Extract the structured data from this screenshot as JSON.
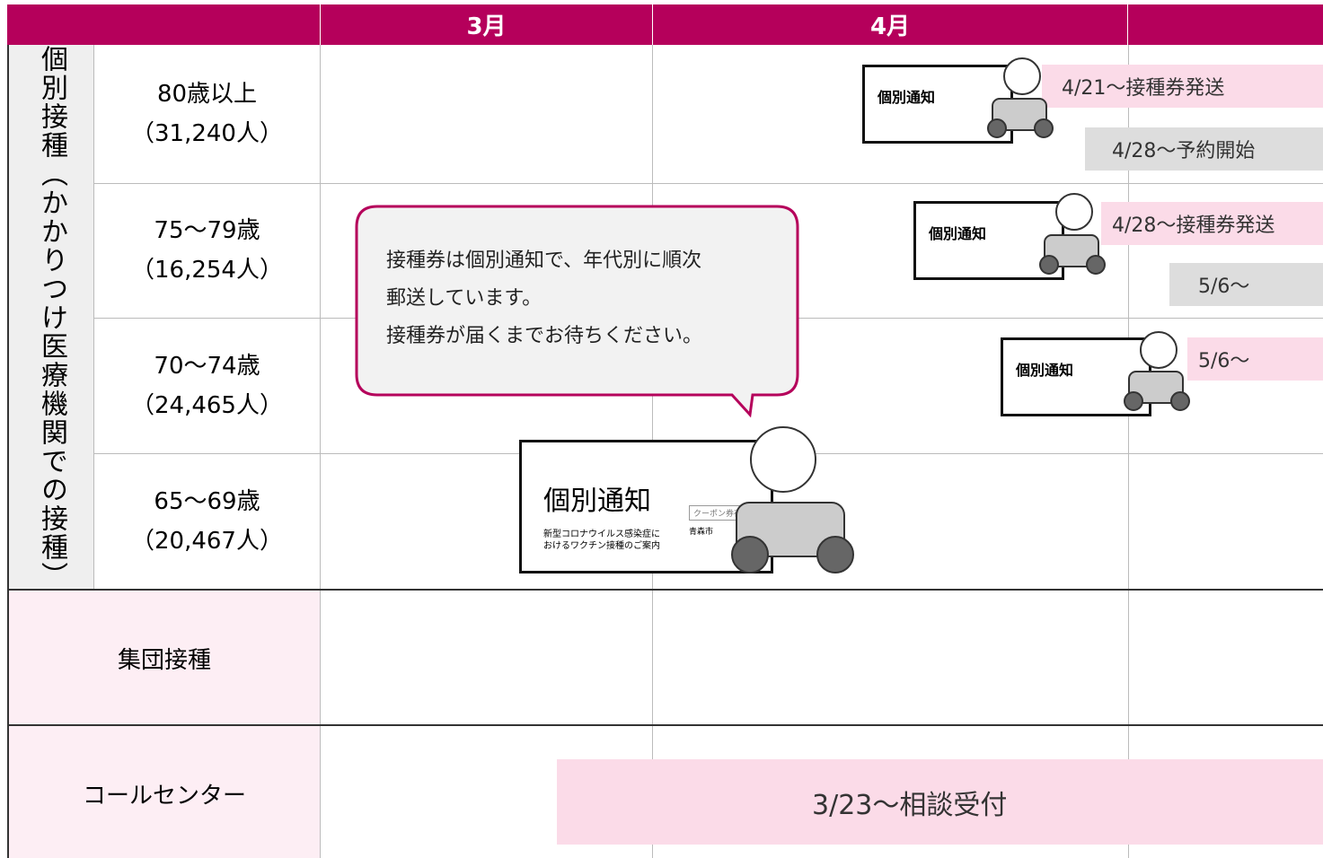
{
  "header": {
    "months": [
      "3月",
      "4月"
    ]
  },
  "side_label": "個別接種（かかりつけ医療機関での接種）",
  "rows": [
    {
      "age": "80歳以上",
      "count": "（31,240人）"
    },
    {
      "age": "75〜79歳",
      "count": "（16,254人）"
    },
    {
      "age": "70〜74歳",
      "count": "（24,465人）"
    },
    {
      "age": "65〜69歳",
      "count": "（20,467人）"
    }
  ],
  "group_rows": [
    "集団接種",
    "コールセンター"
  ],
  "events": [
    "4/21〜接種券発送",
    "4/28〜予約開始",
    "4/28〜接種券発送",
    "5/6〜",
    "5/6〜",
    "3/23〜相談受付"
  ],
  "bubble": {
    "lines": [
      "接種券は個別通知で、年代別に順次",
      "郵送しています。",
      "接種券が届くまでお待ちください。"
    ]
  },
  "card": {
    "title": "個別通知",
    "lines": [
      "新型コロナウイルス感染症に",
      "おけるワクチン接種のご案内"
    ],
    "coupon": "クーポン券在中",
    "city": "青森市"
  }
}
